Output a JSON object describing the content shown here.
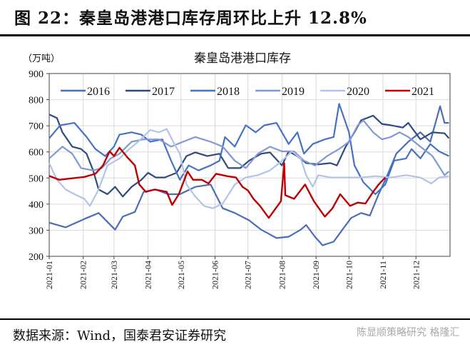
{
  "figure_title": "图 22：秦皇岛港港口库存周环比上升 12.8%",
  "source": "数据来源：Wind，国泰君安证券研究",
  "watermark": "陈显顺策略研究  格隆汇",
  "chart_data": {
    "type": "line",
    "title": "秦皇岛港港口库存",
    "ylabel": "（万吨）",
    "xlabel": "",
    "ylim": [
      200,
      900
    ],
    "yticks": [
      200,
      300,
      400,
      500,
      600,
      700,
      800,
      900
    ],
    "xticks": [
      "2021-01",
      "2021-02",
      "2021-03",
      "2021-04",
      "2021-05",
      "2021-06",
      "2021-07",
      "2021-08",
      "2021-09",
      "2021-10",
      "2021-11",
      "2021-12"
    ],
    "grid": true,
    "legend_position": "top",
    "series": [
      {
        "name": "2016",
        "color": "#4A6DB8",
        "points": [
          [
            "2021-01-01",
            329
          ],
          [
            "2021-01-16",
            311
          ],
          [
            "2021-02-02",
            343
          ],
          [
            "2021-02-15",
            366
          ],
          [
            "2021-03-02",
            302
          ],
          [
            "2021-03-09",
            352
          ],
          [
            "2021-03-20",
            370
          ],
          [
            "2021-03-28",
            447
          ],
          [
            "2021-04-08",
            456
          ],
          [
            "2021-04-19",
            438
          ],
          [
            "2021-04-30",
            438
          ],
          [
            "2021-05-14",
            466
          ],
          [
            "2021-05-28",
            475
          ],
          [
            "2021-06-08",
            384
          ],
          [
            "2021-06-19",
            366
          ],
          [
            "2021-07-02",
            338
          ],
          [
            "2021-07-13",
            302
          ],
          [
            "2021-07-27",
            270
          ],
          [
            "2021-08-07",
            275
          ],
          [
            "2021-08-18",
            302
          ],
          [
            "2021-08-23",
            320
          ],
          [
            "2021-08-31",
            275
          ],
          [
            "2021-09-07",
            242
          ],
          [
            "2021-09-17",
            256
          ],
          [
            "2021-09-25",
            302
          ],
          [
            "2021-10-03",
            347
          ],
          [
            "2021-10-12",
            366
          ],
          [
            "2021-10-20",
            356
          ],
          [
            "2021-10-28",
            438
          ],
          [
            "2021-11-05",
            511
          ],
          [
            "2021-11-13",
            593
          ],
          [
            "2021-11-24",
            639
          ],
          [
            "2021-12-05",
            675
          ],
          [
            "2021-12-14",
            639
          ],
          [
            "2021-12-23",
            775
          ],
          [
            "2021-12-27",
            711
          ],
          [
            "2021-12-31",
            711
          ]
        ]
      },
      {
        "name": "2017",
        "color": "#2F4A80",
        "points": [
          [
            "2021-01-01",
            743
          ],
          [
            "2021-01-08",
            730
          ],
          [
            "2021-01-13",
            675
          ],
          [
            "2021-01-22",
            620
          ],
          [
            "2021-01-30",
            611
          ],
          [
            "2021-02-04",
            593
          ],
          [
            "2021-02-10",
            529
          ],
          [
            "2021-02-15",
            456
          ],
          [
            "2021-02-23",
            438
          ],
          [
            "2021-03-02",
            466
          ],
          [
            "2021-03-09",
            429
          ],
          [
            "2021-03-17",
            466
          ],
          [
            "2021-03-26",
            493
          ],
          [
            "2021-04-01",
            520
          ],
          [
            "2021-04-08",
            502
          ],
          [
            "2021-04-16",
            502
          ],
          [
            "2021-04-27",
            520
          ],
          [
            "2021-05-06",
            584
          ],
          [
            "2021-05-14",
            598
          ],
          [
            "2021-05-25",
            584
          ],
          [
            "2021-06-05",
            593
          ],
          [
            "2021-06-13",
            538
          ],
          [
            "2021-06-24",
            538
          ],
          [
            "2021-07-02",
            566
          ],
          [
            "2021-07-13",
            593
          ],
          [
            "2021-07-21",
            598
          ],
          [
            "2021-08-01",
            548
          ],
          [
            "2021-08-07",
            602
          ],
          [
            "2021-08-15",
            584
          ],
          [
            "2021-08-23",
            557
          ],
          [
            "2021-09-03",
            552
          ],
          [
            "2021-09-14",
            557
          ],
          [
            "2021-09-20",
            548
          ],
          [
            "2021-09-28",
            620
          ],
          [
            "2021-10-06",
            675
          ],
          [
            "2021-10-12",
            721
          ],
          [
            "2021-10-23",
            739
          ],
          [
            "2021-10-31",
            707
          ],
          [
            "2021-11-08",
            702
          ],
          [
            "2021-11-19",
            693
          ],
          [
            "2021-11-24",
            711
          ],
          [
            "2021-12-05",
            648
          ],
          [
            "2021-12-16",
            675
          ],
          [
            "2021-12-27",
            671
          ],
          [
            "2021-12-31",
            652
          ]
        ]
      },
      {
        "name": "2018",
        "color": "#4472C4",
        "points": [
          [
            "2021-01-01",
            652
          ],
          [
            "2021-01-11",
            702
          ],
          [
            "2021-01-24",
            711
          ],
          [
            "2021-02-04",
            657
          ],
          [
            "2021-02-12",
            611
          ],
          [
            "2021-02-21",
            584
          ],
          [
            "2021-03-01",
            620
          ],
          [
            "2021-03-06",
            666
          ],
          [
            "2021-03-17",
            675
          ],
          [
            "2021-03-26",
            666
          ],
          [
            "2021-04-03",
            639
          ],
          [
            "2021-04-14",
            648
          ],
          [
            "2021-04-22",
            566
          ],
          [
            "2021-04-30",
            493
          ],
          [
            "2021-05-08",
            548
          ],
          [
            "2021-05-17",
            529
          ],
          [
            "2021-05-28",
            548
          ],
          [
            "2021-06-05",
            566
          ],
          [
            "2021-06-10",
            657
          ],
          [
            "2021-06-19",
            620
          ],
          [
            "2021-06-29",
            702
          ],
          [
            "2021-07-08",
            675
          ],
          [
            "2021-07-16",
            702
          ],
          [
            "2021-07-27",
            711
          ],
          [
            "2021-08-07",
            630
          ],
          [
            "2021-08-15",
            675
          ],
          [
            "2021-08-21",
            593
          ],
          [
            "2021-08-29",
            630
          ],
          [
            "2021-09-09",
            648
          ],
          [
            "2021-09-17",
            657
          ],
          [
            "2021-09-22",
            784
          ],
          [
            "2021-10-01",
            675
          ],
          [
            "2021-10-06",
            548
          ],
          [
            "2021-10-14",
            484
          ],
          [
            "2021-10-25",
            438
          ],
          [
            "2021-11-03",
            475
          ],
          [
            "2021-11-11",
            566
          ],
          [
            "2021-11-22",
            575
          ],
          [
            "2021-11-27",
            611
          ],
          [
            "2021-12-05",
            575
          ],
          [
            "2021-12-14",
            630
          ],
          [
            "2021-12-22",
            602
          ],
          [
            "2021-12-31",
            584
          ]
        ]
      },
      {
        "name": "2019",
        "color": "#7F99D6",
        "points": [
          [
            "2021-01-01",
            575
          ],
          [
            "2021-01-13",
            620
          ],
          [
            "2021-01-22",
            593
          ],
          [
            "2021-01-30",
            538
          ],
          [
            "2021-02-10",
            529
          ],
          [
            "2021-02-18",
            538
          ],
          [
            "2021-02-26",
            575
          ],
          [
            "2021-03-06",
            593
          ],
          [
            "2021-03-17",
            639
          ],
          [
            "2021-03-28",
            648
          ],
          [
            "2021-04-11",
            648
          ],
          [
            "2021-04-22",
            620
          ],
          [
            "2021-05-03",
            639
          ],
          [
            "2021-05-14",
            657
          ],
          [
            "2021-05-28",
            639
          ],
          [
            "2021-06-08",
            620
          ],
          [
            "2021-06-19",
            566
          ],
          [
            "2021-06-29",
            538
          ],
          [
            "2021-07-10",
            593
          ],
          [
            "2021-07-21",
            620
          ],
          [
            "2021-08-01",
            602
          ],
          [
            "2021-08-12",
            602
          ],
          [
            "2021-08-21",
            566
          ],
          [
            "2021-08-31",
            548
          ],
          [
            "2021-09-11",
            584
          ],
          [
            "2021-09-22",
            611
          ],
          [
            "2021-10-01",
            639
          ],
          [
            "2021-10-09",
            702
          ],
          [
            "2021-10-14",
            721
          ],
          [
            "2021-10-23",
            675
          ],
          [
            "2021-10-31",
            648
          ],
          [
            "2021-11-08",
            657
          ],
          [
            "2021-11-16",
            675
          ],
          [
            "2021-11-24",
            657
          ],
          [
            "2021-12-05",
            620
          ],
          [
            "2021-12-16",
            584
          ],
          [
            "2021-12-27",
            511
          ],
          [
            "2021-12-31",
            525
          ]
        ]
      },
      {
        "name": "2020",
        "color": "#B3C3E8",
        "points": [
          [
            "2021-01-01",
            557
          ],
          [
            "2021-01-08",
            493
          ],
          [
            "2021-01-16",
            456
          ],
          [
            "2021-01-24",
            438
          ],
          [
            "2021-02-02",
            420
          ],
          [
            "2021-02-07",
            393
          ],
          [
            "2021-02-15",
            456
          ],
          [
            "2021-02-23",
            548
          ],
          [
            "2021-03-06",
            575
          ],
          [
            "2021-03-15",
            611
          ],
          [
            "2021-03-23",
            639
          ],
          [
            "2021-04-03",
            684
          ],
          [
            "2021-04-11",
            675
          ],
          [
            "2021-04-18",
            688
          ],
          [
            "2021-04-25",
            630
          ],
          [
            "2021-04-30",
            593
          ],
          [
            "2021-05-06",
            475
          ],
          [
            "2021-05-14",
            429
          ],
          [
            "2021-05-22",
            393
          ],
          [
            "2021-05-30",
            384
          ],
          [
            "2021-06-08",
            402
          ],
          [
            "2021-06-19",
            475
          ],
          [
            "2021-06-29",
            502
          ],
          [
            "2021-07-10",
            511
          ],
          [
            "2021-07-21",
            529
          ],
          [
            "2021-08-01",
            566
          ],
          [
            "2021-08-10",
            602
          ],
          [
            "2021-08-18",
            575
          ],
          [
            "2021-08-23",
            511
          ],
          [
            "2021-08-29",
            466
          ],
          [
            "2021-09-03",
            511
          ],
          [
            "2021-09-14",
            502
          ],
          [
            "2021-09-28",
            502
          ],
          [
            "2021-10-12",
            502
          ],
          [
            "2021-10-25",
            507
          ],
          [
            "2021-11-08",
            502
          ],
          [
            "2021-11-22",
            511
          ],
          [
            "2021-12-05",
            502
          ],
          [
            "2021-12-15",
            479
          ],
          [
            "2021-12-22",
            502
          ],
          [
            "2021-12-31",
            507
          ]
        ]
      },
      {
        "name": "2021",
        "color": "#C00000",
        "points": [
          [
            "2021-01-01",
            508
          ],
          [
            "2021-01-10",
            493
          ],
          [
            "2021-02-02",
            504
          ],
          [
            "2021-02-12",
            516
          ],
          [
            "2021-02-19",
            548
          ],
          [
            "2021-02-25",
            602
          ],
          [
            "2021-03-01",
            584
          ],
          [
            "2021-03-06",
            616
          ],
          [
            "2021-03-13",
            580
          ],
          [
            "2021-03-20",
            548
          ],
          [
            "2021-03-24",
            475
          ],
          [
            "2021-03-30",
            447
          ],
          [
            "2021-04-07",
            456
          ],
          [
            "2021-04-18",
            447
          ],
          [
            "2021-04-23",
            397
          ],
          [
            "2021-04-29",
            438
          ],
          [
            "2021-05-07",
            525
          ],
          [
            "2021-05-12",
            493
          ],
          [
            "2021-05-20",
            493
          ],
          [
            "2021-05-26",
            479
          ],
          [
            "2021-06-02",
            516
          ],
          [
            "2021-06-12",
            507
          ],
          [
            "2021-06-20",
            502
          ],
          [
            "2021-06-26",
            466
          ],
          [
            "2021-07-01",
            452
          ],
          [
            "2021-07-06",
            420
          ],
          [
            "2021-07-12",
            393
          ],
          [
            "2021-07-20",
            347
          ],
          [
            "2021-07-31",
            411
          ],
          [
            "2021-08-03",
            557
          ],
          [
            "2021-08-04",
            434
          ],
          [
            "2021-08-12",
            420
          ],
          [
            "2021-08-22",
            475
          ],
          [
            "2021-08-30",
            411
          ],
          [
            "2021-09-09",
            352
          ],
          [
            "2021-09-16",
            384
          ],
          [
            "2021-09-23",
            438
          ],
          [
            "2021-10-02",
            393
          ],
          [
            "2021-10-09",
            406
          ],
          [
            "2021-10-16",
            402
          ],
          [
            "2021-10-23",
            447
          ],
          [
            "2021-10-28",
            475
          ],
          [
            "2021-11-03",
            502
          ]
        ]
      }
    ]
  }
}
